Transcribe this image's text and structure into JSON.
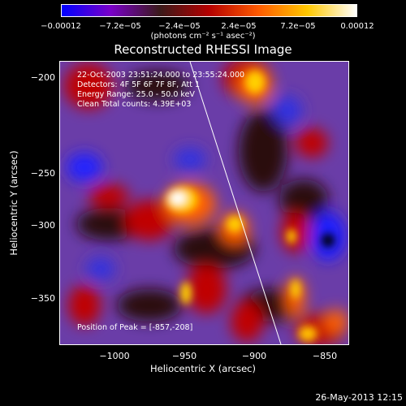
{
  "colorbar": {
    "ticks": [
      "−0.00012",
      "−7.2e−05",
      "−2.4e−05",
      "2.4e−05",
      "7.2e−05",
      "0.00012"
    ],
    "units": "(photons cm⁻² s⁻¹ asec⁻²)",
    "colors": [
      "#0000ff",
      "#7a00c8",
      "#3a1a1a",
      "#b40000",
      "#ff5a00",
      "#ffc800",
      "#ffffff"
    ]
  },
  "title": "Reconstructed RHESSI Image",
  "info": {
    "time": "22-Oct-2003 23:51:24.000 to 23:55:24.000",
    "detectors": "Detectors: 4F 5F 6F 7F 8F, Att 1",
    "energy": "Energy Range: 25.0 - 50.0 keV",
    "clean": "Clean     Total counts: 4.39E+03",
    "peak": "Position of Peak = [-857,-208]"
  },
  "axes": {
    "xlabel": "Heliocentric X (arcsec)",
    "ylabel": "Heliocentric Y (arcsec)",
    "xticks": [
      "−1000",
      "−950",
      "−900",
      "−850"
    ],
    "yticks": [
      "−200",
      "−250",
      "−300",
      "−350"
    ]
  },
  "footer": "26-May-2013 12:15"
}
